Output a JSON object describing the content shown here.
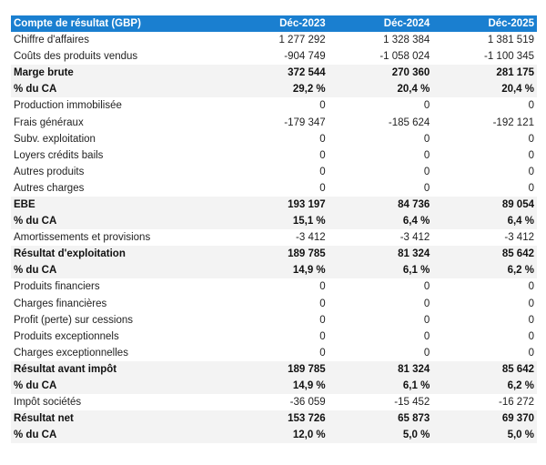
{
  "table": {
    "header": [
      "Compte de résultat (GBP)",
      "Déc-2023",
      "Déc-2024",
      "Déc-2025"
    ],
    "rows": [
      {
        "label": "Chiffre d'affaires",
        "values": [
          "1 277 292",
          "1 328 384",
          "1 381 519"
        ],
        "bold": false
      },
      {
        "label": "Coûts des produits vendus",
        "values": [
          "-904 749",
          "-1 058 024",
          "-1 100 345"
        ],
        "bold": false
      },
      {
        "label": "Marge brute",
        "values": [
          "372 544",
          "270 360",
          "281 175"
        ],
        "bold": true
      },
      {
        "label": "% du CA",
        "values": [
          "29,2 %",
          "20,4 %",
          "20,4 %"
        ],
        "bold": true
      },
      {
        "label": "Production immobilisée",
        "values": [
          "0",
          "0",
          "0"
        ],
        "bold": false
      },
      {
        "label": "Frais généraux",
        "values": [
          "-179 347",
          "-185 624",
          "-192 121"
        ],
        "bold": false
      },
      {
        "label": "Subv. exploitation",
        "values": [
          "0",
          "0",
          "0"
        ],
        "bold": false
      },
      {
        "label": "Loyers crédits bails",
        "values": [
          "0",
          "0",
          "0"
        ],
        "bold": false
      },
      {
        "label": "Autres produits",
        "values": [
          "0",
          "0",
          "0"
        ],
        "bold": false
      },
      {
        "label": "Autres charges",
        "values": [
          "0",
          "0",
          "0"
        ],
        "bold": false
      },
      {
        "label": "EBE",
        "values": [
          "193 197",
          "84 736",
          "89 054"
        ],
        "bold": true
      },
      {
        "label": "% du CA",
        "values": [
          "15,1 %",
          "6,4 %",
          "6,4 %"
        ],
        "bold": true
      },
      {
        "label": "Amortissements et provisions",
        "values": [
          "-3 412",
          "-3 412",
          "-3 412"
        ],
        "bold": false
      },
      {
        "label": "Résultat d'exploitation",
        "values": [
          "189 785",
          "81 324",
          "85 642"
        ],
        "bold": true
      },
      {
        "label": "% du CA",
        "values": [
          "14,9 %",
          "6,1 %",
          "6,2 %"
        ],
        "bold": true
      },
      {
        "label": "Produits financiers",
        "values": [
          "0",
          "0",
          "0"
        ],
        "bold": false
      },
      {
        "label": "Charges financières",
        "values": [
          "0",
          "0",
          "0"
        ],
        "bold": false
      },
      {
        "label": "Profit (perte) sur cessions",
        "values": [
          "0",
          "0",
          "0"
        ],
        "bold": false
      },
      {
        "label": "Produits exceptionnels",
        "values": [
          "0",
          "0",
          "0"
        ],
        "bold": false
      },
      {
        "label": "Charges exceptionnelles",
        "values": [
          "0",
          "0",
          "0"
        ],
        "bold": false
      },
      {
        "label": "Résultat avant impôt",
        "values": [
          "189 785",
          "81 324",
          "85 642"
        ],
        "bold": true
      },
      {
        "label": "% du CA",
        "values": [
          "14,9 %",
          "6,1 %",
          "6,2 %"
        ],
        "bold": true
      },
      {
        "label": "Impôt sociétés",
        "values": [
          "-36 059",
          "-15 452",
          "-16 272"
        ],
        "bold": false
      },
      {
        "label": "Résultat net",
        "values": [
          "153 726",
          "65 873",
          "69 370"
        ],
        "bold": true
      },
      {
        "label": "% du CA",
        "values": [
          "12,0 %",
          "5,0 %",
          "5,0 %"
        ],
        "bold": true
      }
    ]
  },
  "colors": {
    "header_bg": "#1a7fd0",
    "header_text": "#ffffff",
    "bold_row_bg": "#f3f3f3"
  }
}
